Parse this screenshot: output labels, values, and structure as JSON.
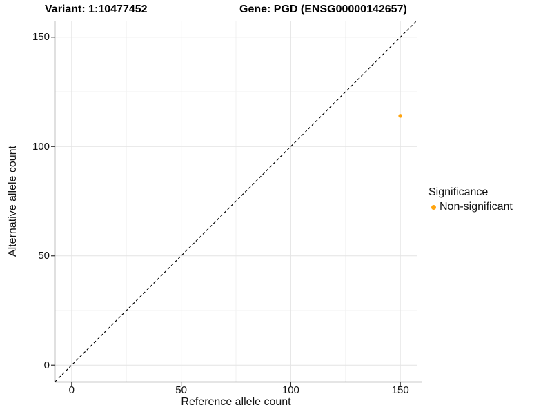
{
  "colors": {
    "point_orange": "#FFA40F",
    "grid_major": "#E4E4E4",
    "grid_minor": "#F2F2F2",
    "axis_line": "#333333",
    "dashed_line": "#000000",
    "text": "#111111"
  },
  "chart_data": {
    "type": "scatter",
    "title_left": "Variant: 1:10477452",
    "title_right": "Gene: PGD (ENSG00000142657)",
    "xlabel": "Reference allele count",
    "ylabel": "Alternative allele count",
    "xlim": [
      -7.5,
      157.5
    ],
    "ylim": [
      -7.5,
      157.5
    ],
    "x_major_ticks": [
      0,
      50,
      100,
      150
    ],
    "y_major_ticks": [
      0,
      50,
      100,
      150
    ],
    "x_minor_ticks": [
      25,
      75,
      125
    ],
    "y_minor_ticks": [
      25,
      75,
      125
    ],
    "grid": "major+minor on white background",
    "identity_line": {
      "equation": "y = x",
      "style": "dashed",
      "span": [
        -7.5,
        157.5
      ]
    },
    "series": [
      {
        "name": "Non-significant",
        "color": "#FFA40F",
        "marker": "circle",
        "points": [
          {
            "x": 150,
            "y": 114
          }
        ]
      }
    ],
    "legend": {
      "title": "Significance",
      "position": "right"
    }
  }
}
